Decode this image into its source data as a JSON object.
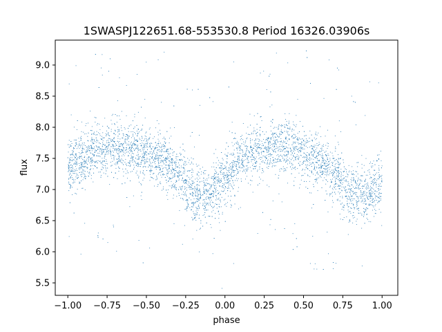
{
  "chart_data": {
    "type": "scatter",
    "title": "1SWASPJ122651.68-553530.8 Period 16326.03906s",
    "xlabel": "phase",
    "ylabel": "flux",
    "xlim": [
      -1.08,
      1.1
    ],
    "ylim": [
      5.3,
      9.4
    ],
    "x_ticks": [
      -1.0,
      -0.75,
      -0.5,
      -0.25,
      0.0,
      0.25,
      0.5,
      0.75,
      1.0
    ],
    "x_tick_labels": [
      "−1.00",
      "−0.75",
      "−0.50",
      "−0.25",
      "0.00",
      "0.25",
      "0.50",
      "0.75",
      "1.00"
    ],
    "y_ticks": [
      5.5,
      6.0,
      6.5,
      7.0,
      7.5,
      8.0,
      8.5,
      9.0
    ],
    "y_tick_labels": [
      "5.5",
      "6.0",
      "6.5",
      "7.0",
      "7.5",
      "8.0",
      "8.5",
      "9.0"
    ],
    "grid": false,
    "legend": false,
    "marker_color": "#1f77b4",
    "series": [
      {
        "phase_range": [
          -1.0,
          1.0
        ],
        "mean_curve": {
          "phase": [
            -1.0,
            -0.9,
            -0.8,
            -0.7,
            -0.6,
            -0.5,
            -0.4,
            -0.3,
            -0.2,
            -0.15,
            -0.1,
            -0.05,
            0.0,
            0.1,
            0.2,
            0.3,
            0.4,
            0.5,
            0.6,
            0.7,
            0.8,
            0.85,
            0.9,
            0.95,
            1.0
          ],
          "flux": [
            7.35,
            7.5,
            7.62,
            7.68,
            7.65,
            7.55,
            7.45,
            7.25,
            6.95,
            6.88,
            6.9,
            7.05,
            7.2,
            7.45,
            7.6,
            7.7,
            7.68,
            7.58,
            7.45,
            7.25,
            6.95,
            6.88,
            6.9,
            7.0,
            7.1
          ]
        },
        "scatter_sigma": 0.22
      }
    ]
  }
}
